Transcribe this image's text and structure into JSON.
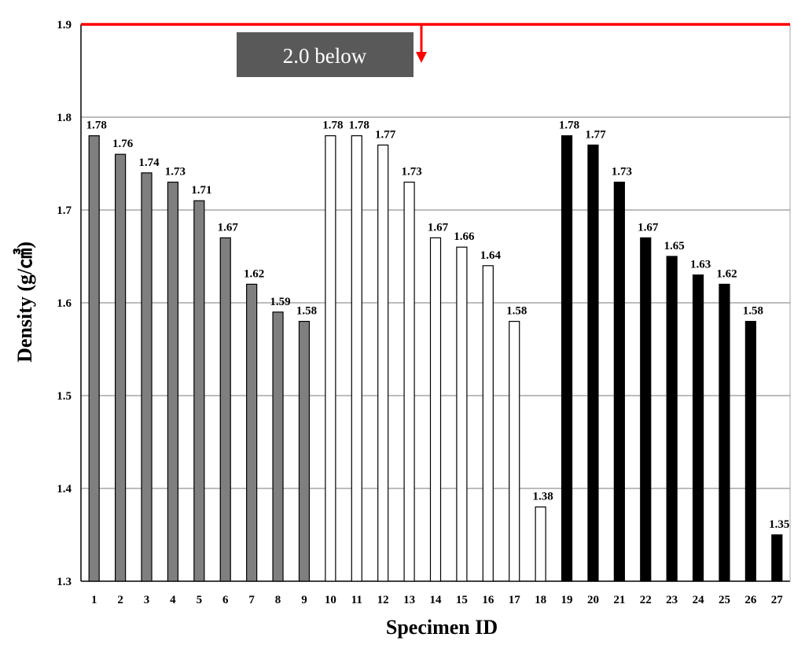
{
  "chart_data": {
    "type": "bar",
    "title": "",
    "xlabel": "Specimen ID",
    "ylabel": "Density (g/㎤)",
    "ylim": [
      1.3,
      1.9
    ],
    "yticks": [
      "1.3",
      "1.4",
      "1.5",
      "1.6",
      "1.7",
      "1.8",
      "1.9"
    ],
    "grid": true,
    "categories": [
      "1",
      "2",
      "3",
      "4",
      "5",
      "6",
      "7",
      "8",
      "9",
      "10",
      "11",
      "12",
      "13",
      "14",
      "15",
      "16",
      "17",
      "18",
      "19",
      "20",
      "21",
      "22",
      "23",
      "24",
      "25",
      "26",
      "27"
    ],
    "values": [
      1.78,
      1.76,
      1.74,
      1.73,
      1.71,
      1.67,
      1.62,
      1.59,
      1.58,
      1.78,
      1.78,
      1.77,
      1.73,
      1.67,
      1.66,
      1.64,
      1.58,
      1.38,
      1.78,
      1.77,
      1.73,
      1.67,
      1.65,
      1.63,
      1.62,
      1.58,
      1.35
    ],
    "labels": [
      "1.78",
      "1.76",
      "1.74",
      "1.73",
      "1.71",
      "1.67",
      "1.62",
      "1.59",
      "1.58",
      "1.78",
      "1.78",
      "1.77",
      "1.73",
      "1.67",
      "1.66",
      "1.64",
      "1.58",
      "1.38",
      "1.78",
      "1.77",
      "1.73",
      "1.67",
      "1.65",
      "1.63",
      "1.62",
      "1.58",
      "1.35"
    ],
    "bar_groups": [
      {
        "from": 0,
        "to": 8,
        "fill": "#7f7f7f"
      },
      {
        "from": 9,
        "to": 17,
        "fill": "#ffffff"
      },
      {
        "from": 18,
        "to": 26,
        "fill": "#000000"
      }
    ],
    "reference_line": {
      "value": 1.9,
      "color": "#ff0000"
    },
    "annotation": {
      "text": "2.0 below",
      "box_color": "#595959",
      "arrow_color": "#ff0000"
    }
  }
}
